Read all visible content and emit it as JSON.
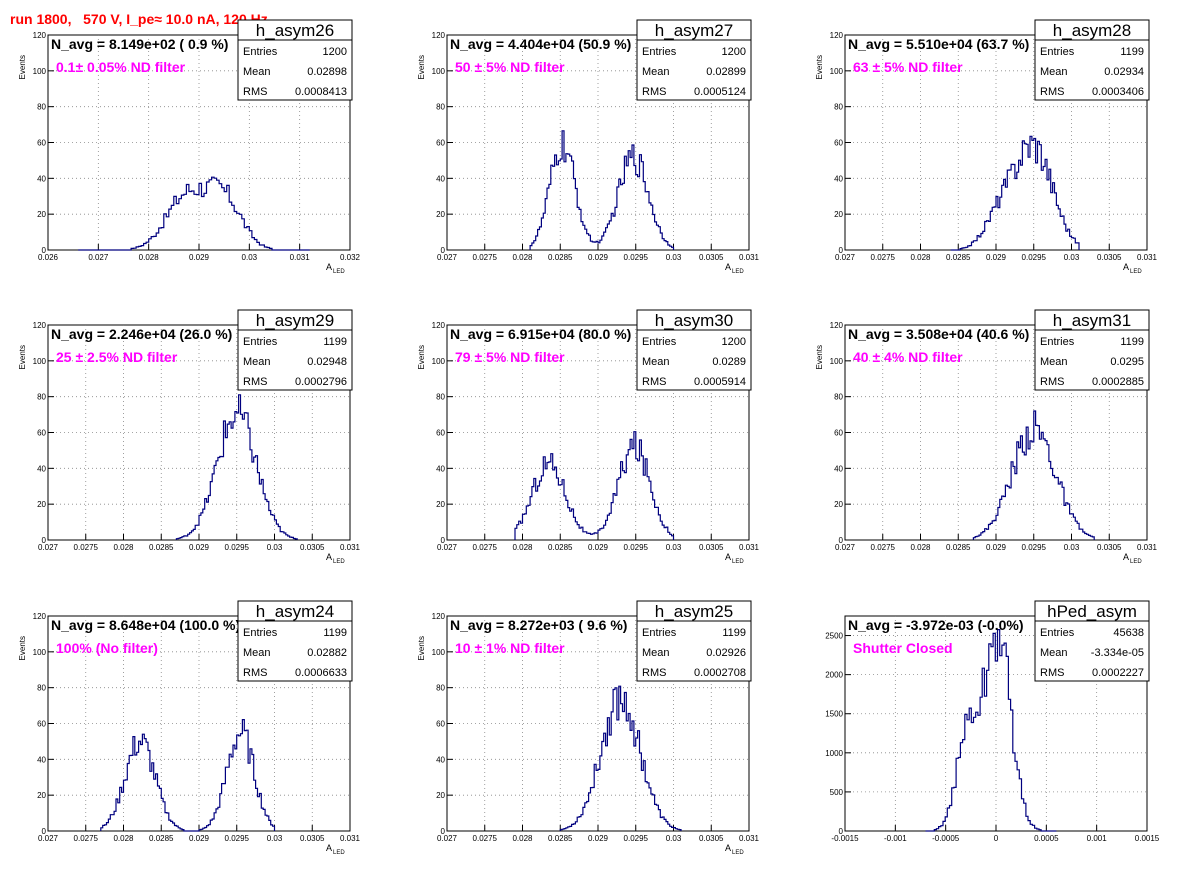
{
  "page": {
    "title": "run 1800,   570 V, I_pe≈ 10.0 nA, 120 Hz"
  },
  "colors": {
    "hist_line": "#00007f",
    "stat_text": "#000000",
    "filter_label": "#ff00ff",
    "title": "#ff0000",
    "grid": "#888888"
  },
  "chart_data": [
    {
      "type": "histogram",
      "name": "h_asym26",
      "stats": {
        "Entries": "1200",
        "Mean": "0.02898",
        "RMS": "0.0008413"
      },
      "navg": "N_avg = 8.149e+02 ( 0.9 %)",
      "filter": "0.1± 0.05% ND filter",
      "xlabel": "A",
      "xlabel_sub": "LED",
      "ylabel": "Events",
      "xlim": [
        0.026,
        0.032
      ],
      "ylim": [
        0,
        120
      ],
      "xticks": [
        0.026,
        0.027,
        0.028,
        0.029,
        0.03,
        0.031,
        0.032
      ],
      "xtick_labels": [
        "0.026",
        "0.027",
        "0.028",
        "0.029",
        "0.03",
        "0.031",
        "0.032"
      ],
      "yticks": [
        0,
        20,
        40,
        60,
        80,
        100,
        120
      ],
      "ytick_labels": [
        "0",
        "20",
        "40",
        "60",
        "80",
        "100",
        "120"
      ],
      "peaks": [
        {
          "mu": 0.02875,
          "sigma": 0.0004,
          "amp": 30
        },
        {
          "mu": 0.0295,
          "sigma": 0.00035,
          "amp": 28
        }
      ],
      "bins": {
        "start": 0.0266,
        "end": 0.0312,
        "n": 92
      }
    },
    {
      "type": "histogram",
      "name": "h_asym27",
      "stats": {
        "Entries": "1200",
        "Mean": "0.02899",
        "RMS": "0.0005124"
      },
      "navg": "N_avg = 4.404e+04 (50.9 %)",
      "filter": "50 ± 5% ND filter",
      "xlabel": "A",
      "xlabel_sub": "LED",
      "ylabel": "Events",
      "xlim": [
        0.027,
        0.031
      ],
      "ylim": [
        0,
        120
      ],
      "xticks": [
        0.027,
        0.0275,
        0.028,
        0.0285,
        0.029,
        0.0295,
        0.03,
        0.0305,
        0.031
      ],
      "xtick_labels": [
        "0.027",
        "0.0275",
        "0.028",
        "0.0285",
        "0.029",
        "0.0295",
        "0.03",
        "0.0305",
        "0.031"
      ],
      "yticks": [
        0,
        20,
        40,
        60,
        80,
        100,
        120
      ],
      "ytick_labels": [
        "0",
        "20",
        "40",
        "60",
        "80",
        "100",
        "120"
      ],
      "peaks": [
        {
          "mu": 0.02853,
          "sigma": 0.00017,
          "amp": 58
        },
        {
          "mu": 0.02947,
          "sigma": 0.0002,
          "amp": 52
        }
      ],
      "bins": {
        "start": 0.0281,
        "end": 0.03,
        "n": 76
      }
    },
    {
      "type": "histogram",
      "name": "h_asym28",
      "stats": {
        "Entries": "1199",
        "Mean": "0.02934",
        "RMS": "0.0003406"
      },
      "navg": "N_avg = 5.510e+04 (63.7 %)",
      "filter": "63 ± 5% ND filter",
      "xlabel": "A",
      "xlabel_sub": "LED",
      "ylabel": "Events",
      "xlim": [
        0.027,
        0.031
      ],
      "ylim": [
        0,
        120
      ],
      "xticks": [
        0.027,
        0.0275,
        0.028,
        0.0285,
        0.029,
        0.0295,
        0.03,
        0.0305,
        0.031
      ],
      "xtick_labels": [
        "0.027",
        "0.0275",
        "0.028",
        "0.0285",
        "0.029",
        "0.0295",
        "0.03",
        "0.0305",
        "0.031"
      ],
      "yticks": [
        0,
        20,
        40,
        60,
        80,
        100,
        120
      ],
      "ytick_labels": [
        "0",
        "20",
        "40",
        "60",
        "80",
        "100",
        "120"
      ],
      "peaks": [
        {
          "mu": 0.0295,
          "sigma": 0.00025,
          "amp": 58
        },
        {
          "mu": 0.02905,
          "sigma": 0.0002,
          "amp": 18
        }
      ],
      "bins": {
        "start": 0.0284,
        "end": 0.0301,
        "n": 68
      }
    },
    {
      "type": "histogram",
      "name": "h_asym29",
      "stats": {
        "Entries": "1199",
        "Mean": "0.02948",
        "RMS": "0.0002796"
      },
      "navg": "N_avg = 2.246e+04 (26.0 %)",
      "filter": "25 ± 2.5% ND filter",
      "xlabel": "A",
      "xlabel_sub": "LED",
      "ylabel": "Events",
      "xlim": [
        0.027,
        0.031
      ],
      "ylim": [
        0,
        120
      ],
      "xticks": [
        0.027,
        0.0275,
        0.028,
        0.0285,
        0.029,
        0.0295,
        0.03,
        0.0305,
        0.031
      ],
      "xtick_labels": [
        "0.027",
        "0.0275",
        "0.028",
        "0.0285",
        "0.029",
        "0.0295",
        "0.03",
        "0.0305",
        "0.031"
      ],
      "yticks": [
        0,
        20,
        40,
        60,
        80,
        100,
        120
      ],
      "ytick_labels": [
        "0",
        "20",
        "40",
        "60",
        "80",
        "100",
        "120"
      ],
      "peaks": [
        {
          "mu": 0.0295,
          "sigma": 0.00026,
          "amp": 70
        }
      ],
      "bins": {
        "start": 0.0287,
        "end": 0.0303,
        "n": 64
      }
    },
    {
      "type": "histogram",
      "name": "h_asym30",
      "stats": {
        "Entries": "1200",
        "Mean": "0.0289",
        "RMS": "0.0005914"
      },
      "navg": "N_avg = 6.915e+04 (80.0 %)",
      "filter": "79 ± 5% ND filter",
      "xlabel": "A",
      "xlabel_sub": "LED",
      "ylabel": "Events",
      "xlim": [
        0.027,
        0.031
      ],
      "ylim": [
        0,
        120
      ],
      "xticks": [
        0.027,
        0.0275,
        0.028,
        0.0285,
        0.029,
        0.0295,
        0.03,
        0.0305,
        0.031
      ],
      "xtick_labels": [
        "0.027",
        "0.0275",
        "0.028",
        "0.0285",
        "0.029",
        "0.0295",
        "0.03",
        "0.0305",
        "0.031"
      ],
      "yticks": [
        0,
        20,
        40,
        60,
        80,
        100,
        120
      ],
      "ytick_labels": [
        "0",
        "20",
        "40",
        "60",
        "80",
        "100",
        "120"
      ],
      "peaks": [
        {
          "mu": 0.02835,
          "sigma": 0.00022,
          "amp": 43
        },
        {
          "mu": 0.02948,
          "sigma": 0.00021,
          "amp": 52
        }
      ],
      "bins": {
        "start": 0.0279,
        "end": 0.03,
        "n": 84
      }
    },
    {
      "type": "histogram",
      "name": "h_asym31",
      "stats": {
        "Entries": "1199",
        "Mean": "0.0295",
        "RMS": "0.0002885"
      },
      "navg": "N_avg = 3.508e+04 (40.6 %)",
      "filter": "40 ± 4% ND filter",
      "xlabel": "A",
      "xlabel_sub": "LED",
      "ylabel": "Events",
      "xlim": [
        0.027,
        0.031
      ],
      "ylim": [
        0,
        120
      ],
      "xticks": [
        0.027,
        0.0275,
        0.028,
        0.0285,
        0.029,
        0.0295,
        0.03,
        0.0305,
        0.031
      ],
      "xtick_labels": [
        "0.027",
        "0.0275",
        "0.028",
        "0.0285",
        "0.029",
        "0.0295",
        "0.03",
        "0.0305",
        "0.031"
      ],
      "yticks": [
        0,
        20,
        40,
        60,
        80,
        100,
        120
      ],
      "ytick_labels": [
        "0",
        "20",
        "40",
        "60",
        "80",
        "100",
        "120"
      ],
      "peaks": [
        {
          "mu": 0.0295,
          "sigma": 0.00029,
          "amp": 62
        }
      ],
      "bins": {
        "start": 0.0287,
        "end": 0.0303,
        "n": 64
      }
    },
    {
      "type": "histogram",
      "name": "h_asym24",
      "stats": {
        "Entries": "1199",
        "Mean": "0.02882",
        "RMS": "0.0006633"
      },
      "navg": "N_avg = 8.648e+04 (100.0 %)",
      "filter": "100% (No filter)",
      "xlabel": "A",
      "xlabel_sub": "LED",
      "ylabel": "Events",
      "xlim": [
        0.027,
        0.031
      ],
      "ylim": [
        0,
        120
      ],
      "xticks": [
        0.027,
        0.0275,
        0.028,
        0.0285,
        0.029,
        0.0295,
        0.03,
        0.0305,
        0.031
      ],
      "xtick_labels": [
        "0.027",
        "0.0275",
        "0.028",
        "0.0285",
        "0.029",
        "0.0295",
        "0.03",
        "0.0305",
        "0.031"
      ],
      "yticks": [
        0,
        20,
        40,
        60,
        80,
        100,
        120
      ],
      "ytick_labels": [
        "0",
        "20",
        "40",
        "60",
        "80",
        "100",
        "120"
      ],
      "peaks": [
        {
          "mu": 0.02822,
          "sigma": 0.0002,
          "amp": 50
        },
        {
          "mu": 0.02955,
          "sigma": 0.00018,
          "amp": 55
        }
      ],
      "bins": {
        "start": 0.0277,
        "end": 0.03,
        "n": 92
      }
    },
    {
      "type": "histogram",
      "name": "h_asym25",
      "stats": {
        "Entries": "1199",
        "Mean": "0.02926",
        "RMS": "0.0002708"
      },
      "navg": "N_avg = 8.272e+03 ( 9.6 %)",
      "filter": "10 ± 1% ND filter",
      "xlabel": "A",
      "xlabel_sub": "LED",
      "ylabel": "Events",
      "xlim": [
        0.027,
        0.031
      ],
      "ylim": [
        0,
        120
      ],
      "xticks": [
        0.027,
        0.0275,
        0.028,
        0.0285,
        0.029,
        0.0295,
        0.03,
        0.0305,
        0.031
      ],
      "xtick_labels": [
        "0.027",
        "0.0275",
        "0.028",
        "0.0285",
        "0.029",
        "0.0295",
        "0.03",
        "0.0305",
        "0.031"
      ],
      "yticks": [
        0,
        20,
        40,
        60,
        80,
        100,
        120
      ],
      "ytick_labels": [
        "0",
        "20",
        "40",
        "60",
        "80",
        "100",
        "120"
      ],
      "peaks": [
        {
          "mu": 0.0293,
          "sigma": 0.00026,
          "amp": 74
        }
      ],
      "bins": {
        "start": 0.0285,
        "end": 0.0301,
        "n": 64
      }
    },
    {
      "type": "histogram",
      "name": "hPed_asym",
      "stats": {
        "Entries": "45638",
        "Mean": "-3.334e-05",
        "RMS": "0.0002227"
      },
      "navg": "N_avg = -3.972e-03 (-0.0%)",
      "filter": "Shutter Closed",
      "xlabel": "",
      "xlabel_sub": "",
      "ylabel": "",
      "xlim": [
        -0.0015,
        0.0015
      ],
      "ylim": [
        0,
        2750
      ],
      "xticks": [
        -0.0015,
        -0.001,
        -0.0005,
        0,
        0.0005,
        0.001,
        0.0015
      ],
      "xtick_labels": [
        "-0.0015",
        "-0.001",
        "-0.0005",
        "0",
        "0.0005",
        "0.001",
        "0.0015"
      ],
      "yticks": [
        0,
        500,
        1000,
        1500,
        2000,
        2500
      ],
      "ytick_labels": [
        "0",
        "500",
        "1000",
        "1500",
        "2000",
        "2500"
      ],
      "peaks": [
        {
          "mu": 2e-05,
          "sigma": 0.00013,
          "amp": 2500
        },
        {
          "mu": -0.00028,
          "sigma": 0.00011,
          "amp": 1250
        }
      ],
      "bins": {
        "start": -0.0007,
        "end": 0.0006,
        "n": 60
      }
    }
  ]
}
